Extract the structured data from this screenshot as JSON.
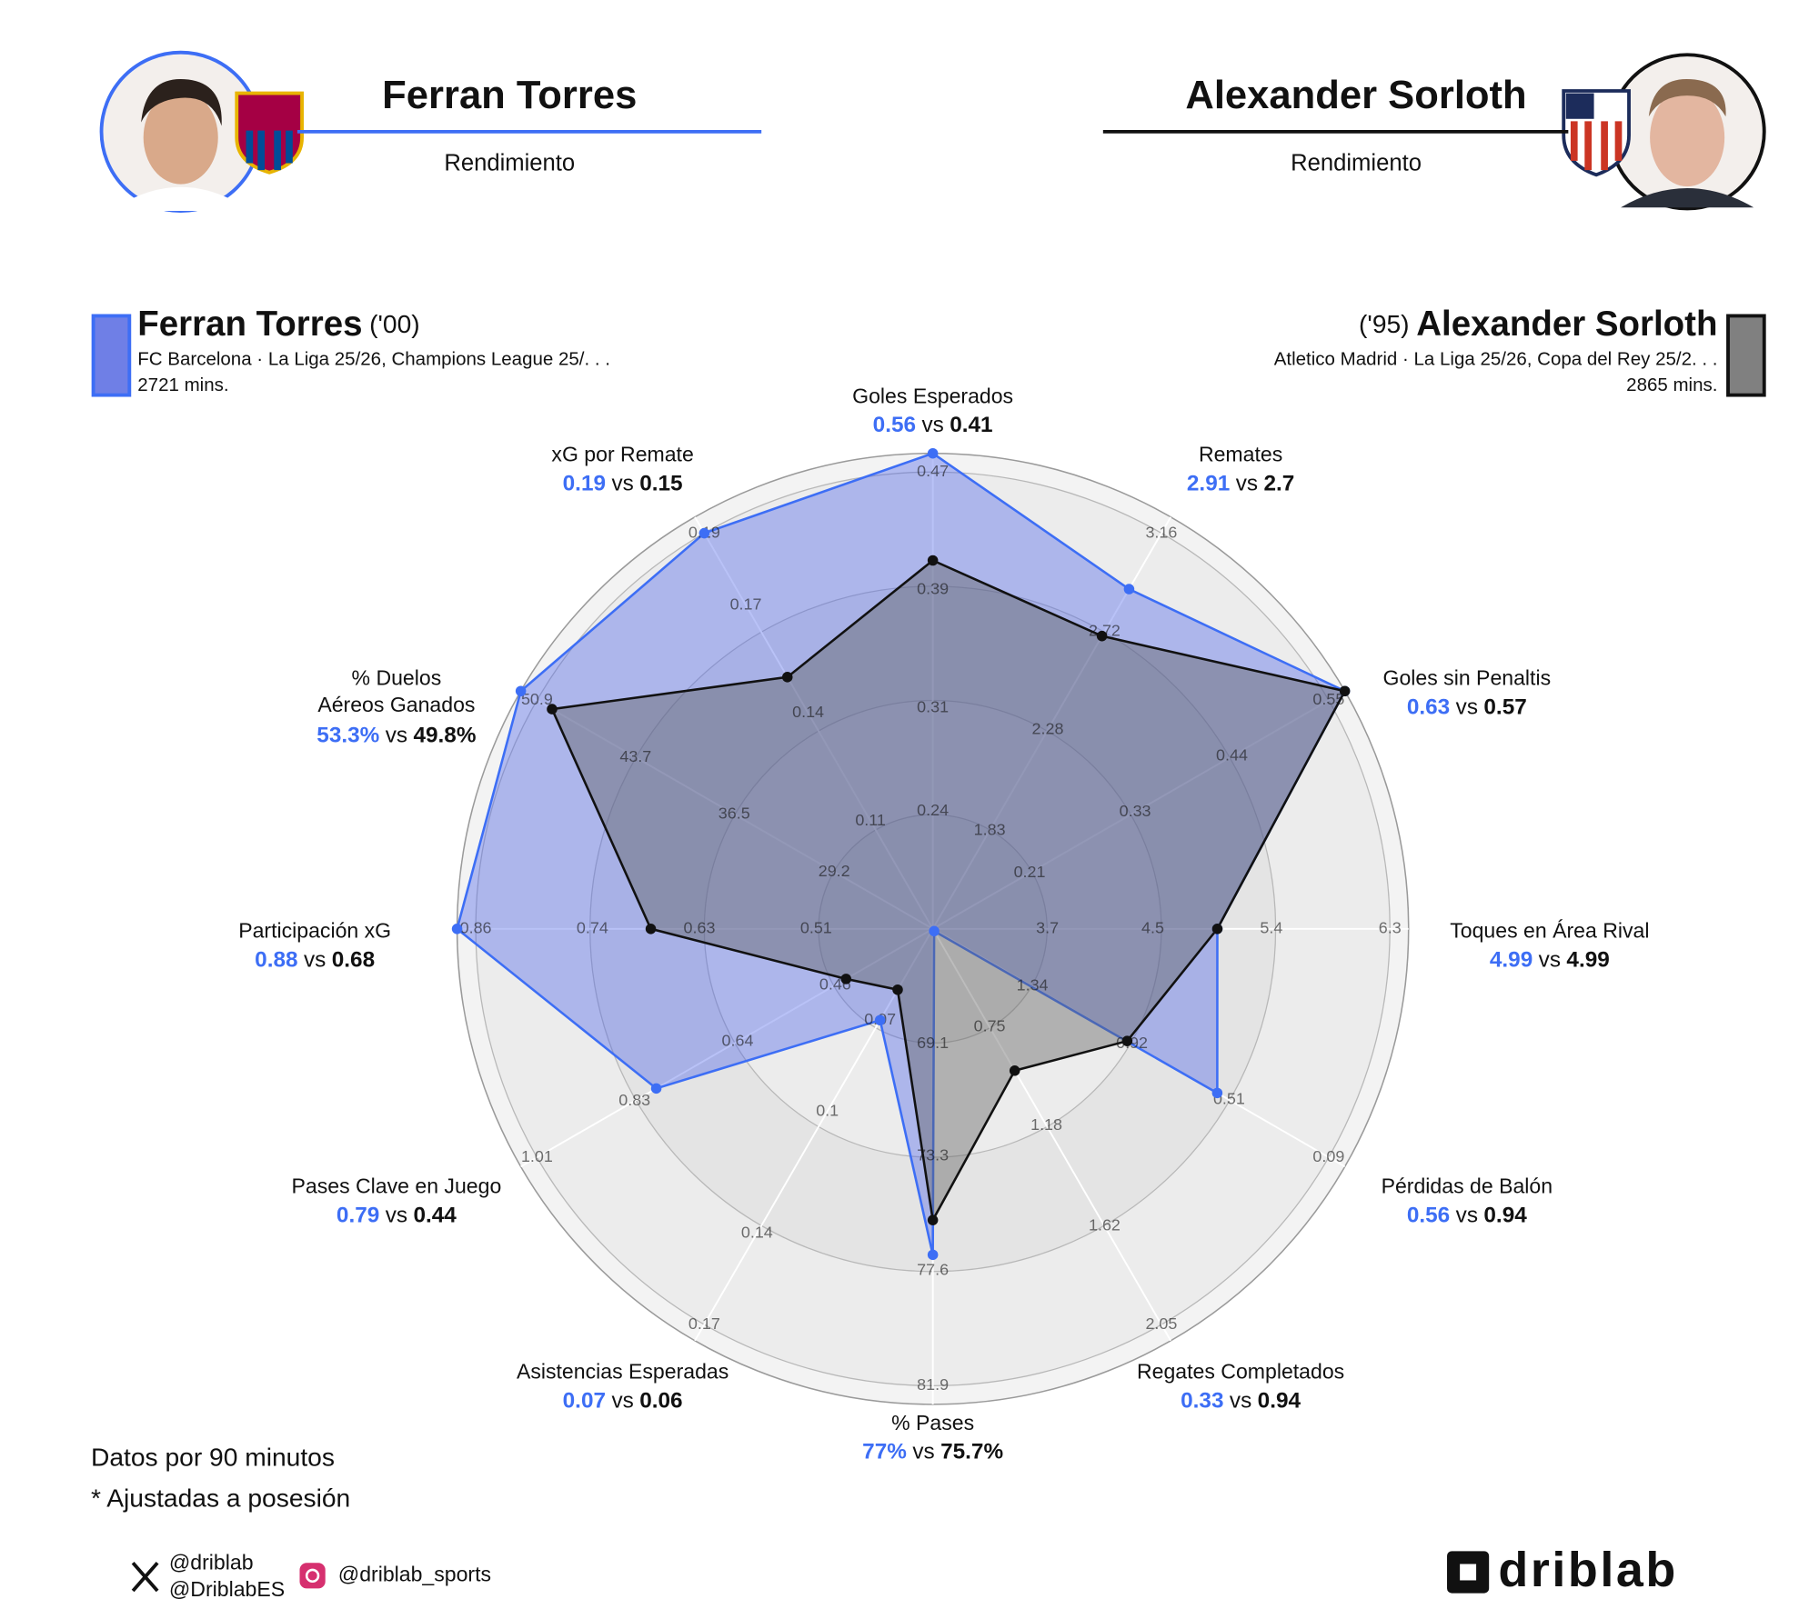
{
  "header": {
    "left": {
      "name": "Ferran Torres",
      "subtitle": "Rendimiento"
    },
    "right": {
      "name": "Alexander Sorloth",
      "subtitle": "Rendimiento"
    }
  },
  "legend": [
    {
      "name": "Ferran Torres",
      "year": "('00)",
      "club": "FC Barcelona · La Liga 25/26, Champions League 25/. . .",
      "mins": "2721 mins."
    },
    {
      "name": "Alexander Sorloth",
      "year": "('95)",
      "club": "Atletico Madrid · La Liga 25/26, Copa del Rey 25/2. . .",
      "mins": "2865 mins."
    }
  ],
  "chart_data": {
    "type": "radar",
    "vs": "vs",
    "categories": [
      "Goles Esperados",
      "Remates",
      "Goles sin Penaltis",
      "Toques en Área Rival",
      "Pérdidas de Balón",
      "Regates Completados",
      "% Pases",
      "Asistencias Esperadas",
      "Pases Clave en Juego",
      "Participación xG",
      "% Duelos Aéreos Ganados",
      "xG por Remate"
    ],
    "axes": [
      {
        "ticks": [
          0.24,
          0.31,
          0.39,
          0.47
        ],
        "lim": [
          0.16,
          0.47
        ]
      },
      {
        "ticks": [
          1.83,
          2.28,
          2.72,
          3.16
        ],
        "lim": [
          1.39,
          3.16
        ]
      },
      {
        "ticks": [
          0.21,
          0.33,
          0.44,
          0.55
        ],
        "lim": [
          0.1,
          0.55
        ]
      },
      {
        "ticks": [
          3.7,
          4.5,
          5.4,
          6.3
        ],
        "lim": [
          2.83,
          6.3
        ]
      },
      {
        "ticks": [
          1.34,
          0.92,
          0.51,
          0.09
        ],
        "lim": [
          1.76,
          0.09
        ]
      },
      {
        "ticks": [
          0.75,
          1.18,
          1.62,
          2.05
        ],
        "lim": [
          0.32,
          2.05
        ]
      },
      {
        "ticks": [
          69.1,
          73.3,
          77.6,
          81.9
        ],
        "lim": [
          64.8,
          81.9
        ]
      },
      {
        "ticks": [
          0.07,
          0.1,
          0.14,
          0.17
        ],
        "lim": [
          0.04,
          0.17
        ]
      },
      {
        "ticks": [
          0.46,
          0.64,
          0.83,
          1.01
        ],
        "lim": [
          0.28,
          1.01
        ]
      },
      {
        "ticks": [
          0.51,
          0.63,
          0.74,
          0.86
        ],
        "lim": [
          0.39,
          0.86
        ]
      },
      {
        "ticks": [
          29.2,
          36.5,
          43.7,
          50.9
        ],
        "lim": [
          22,
          50.9
        ]
      },
      {
        "ticks": [
          0.11,
          0.14,
          0.17,
          0.19
        ],
        "lim": [
          0.08,
          0.19
        ]
      }
    ],
    "series": [
      {
        "name": "Ferran Torres",
        "color": "#3d6ef5",
        "values": [
          0.56,
          2.91,
          0.63,
          4.99,
          0.56,
          0.33,
          77,
          0.07,
          0.79,
          0.88,
          53.3,
          0.19
        ],
        "value_labels": [
          "0.56",
          "2.91",
          "0.63",
          "4.99",
          "0.56",
          "0.33",
          "77%",
          "0.07",
          "0.79",
          "0.88",
          "53.3%",
          "0.19"
        ]
      },
      {
        "name": "Alexander Sorloth",
        "color": "#111111",
        "values": [
          0.41,
          2.7,
          0.57,
          4.99,
          0.94,
          0.94,
          75.7,
          0.06,
          0.44,
          0.68,
          49.8,
          0.15
        ],
        "value_labels": [
          "0.41",
          "2.7",
          "0.57",
          "4.99",
          "0.94",
          "0.94",
          "75.7%",
          "0.06",
          "0.44",
          "0.68",
          "49.8%",
          "0.15"
        ]
      }
    ]
  },
  "notes": [
    "Datos por 90 minutos",
    "* Ajustadas a posesión"
  ],
  "footer": {
    "x_handles": [
      "@driblab",
      "@DriblabES"
    ],
    "instagram": "@driblab_sports",
    "logo": "driblab"
  }
}
